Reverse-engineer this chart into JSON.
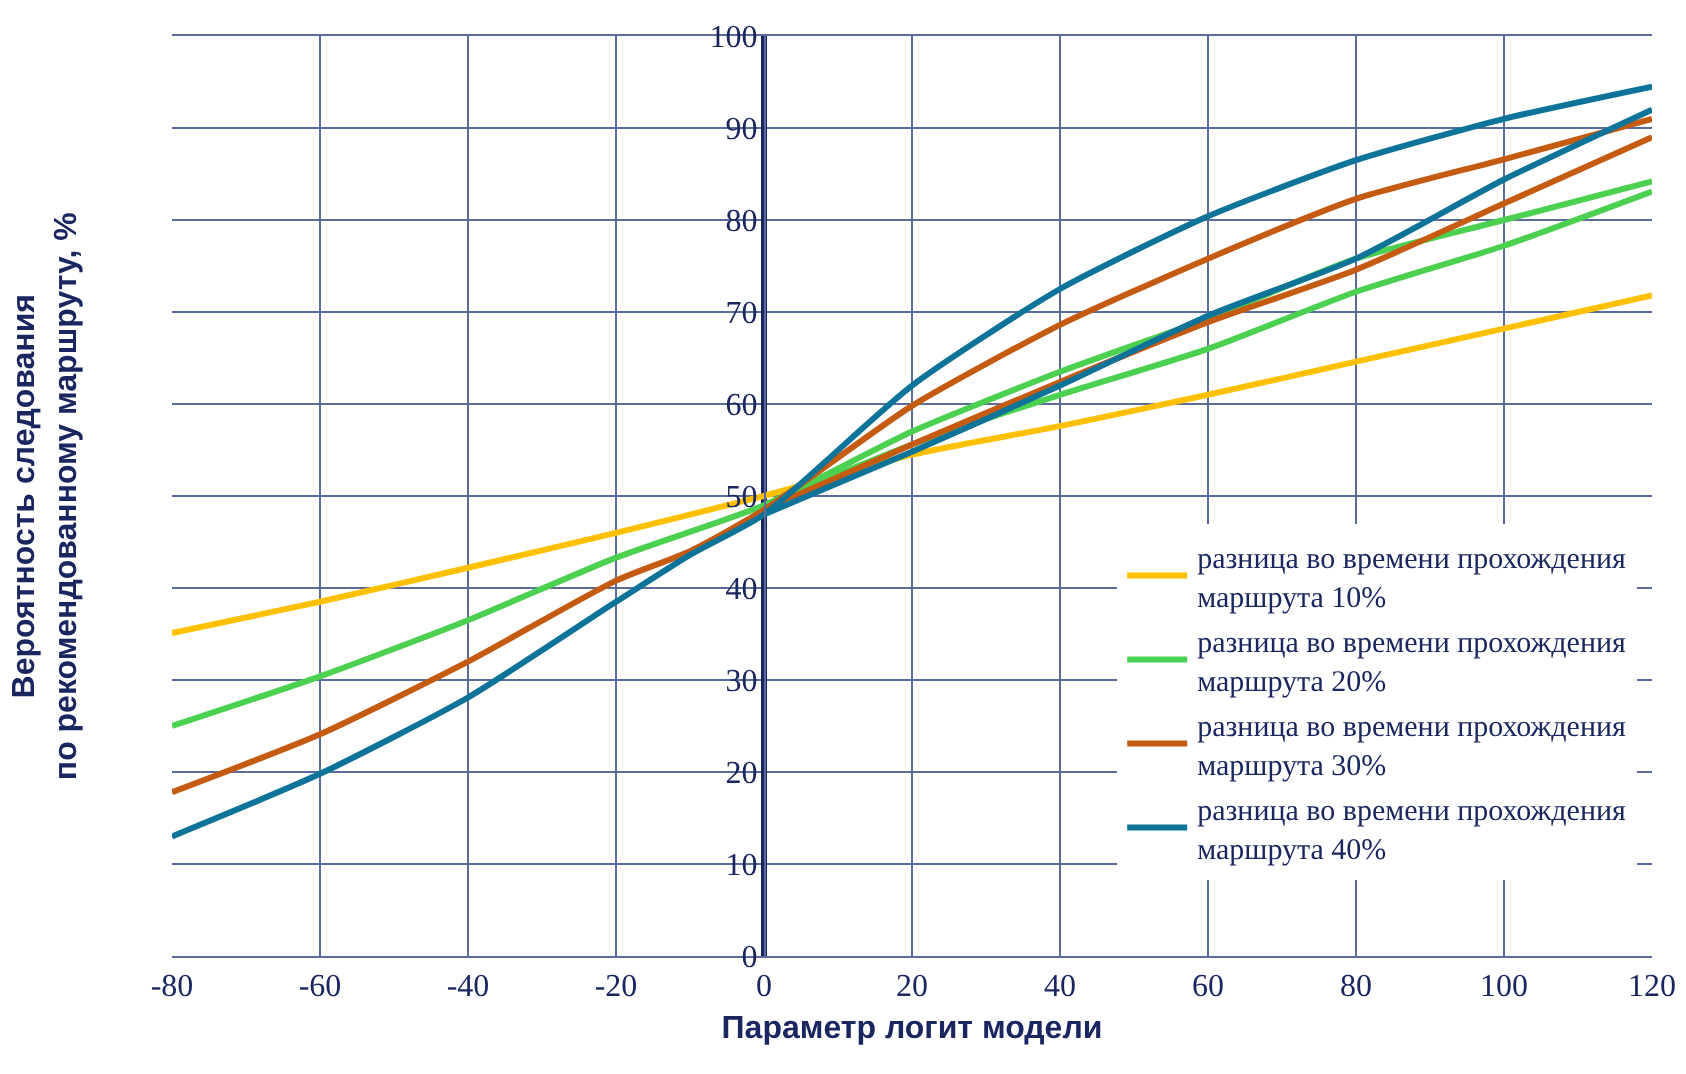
{
  "chart_data": {
    "type": "line",
    "xlabel": "Параметр логит модели",
    "ylabel": "Вероятность следования\nпо рекомендованному маршруту, %",
    "xlim": [
      -80,
      120
    ],
    "xticks": [
      -80,
      -60,
      -40,
      -20,
      0,
      20,
      40,
      60,
      80,
      100,
      120
    ],
    "ylim": [
      0,
      100
    ],
    "yticks": [
      0,
      10,
      20,
      30,
      40,
      50,
      60,
      70,
      80,
      90,
      100
    ],
    "grid": true,
    "legend": "right",
    "marker": "none",
    "line_style": "solid",
    "series": [
      {
        "name": "разница во времени прохождения\nмаршрута 10%",
        "color": "#ffc000",
        "x": [
          -80,
          -60,
          -40,
          -20,
          0,
          20,
          40,
          60,
          80,
          100,
          120
        ],
        "values": [
          35.1,
          38.5,
          42.2,
          46,
          50,
          54.5,
          57.6,
          61,
          64.6,
          68.2,
          71.8
        ]
      },
      {
        "name": "разница во времени прохождения\nмаршрута 20%",
        "color": "#4cd050",
        "x": [
          -80,
          -60,
          -40,
          -20,
          0,
          20,
          40,
          60,
          80,
          100,
          120
        ],
        "values": [
          25,
          30.4,
          36.5,
          43.3,
          49,
          57,
          63.5,
          69.3,
          75.8,
          80,
          84.2
        ]
      },
      {
        "color": "#4cd050",
        "x": [
          0,
          20,
          40,
          60,
          80,
          100,
          120
        ],
        "values": [
          49,
          55.6,
          61,
          66,
          72.2,
          77.2,
          83.1
        ]
      },
      {
        "name": "разница во времени прохождения\nмаршрута 30%",
        "color": "#c55a11",
        "x": [
          -80,
          -60,
          -40,
          -20,
          -10,
          0,
          20,
          40,
          60,
          80,
          100,
          120
        ],
        "values": [
          17.8,
          24.1,
          32,
          40.8,
          44,
          48.5,
          59.8,
          68.6,
          75.8,
          82.3,
          86.6,
          91
        ]
      },
      {
        "color": "#c55a11",
        "x": [
          0,
          20,
          40,
          60,
          80,
          100,
          120
        ],
        "values": [
          48.5,
          55.6,
          62.4,
          68.9,
          74.6,
          81.8,
          89
        ]
      },
      {
        "name": "разница во времени прохождения\nмаршрута 40%",
        "color": "#0e7399",
        "x": [
          -80,
          -60,
          -40,
          -20,
          -10,
          0,
          20,
          40,
          60,
          80,
          100,
          120
        ],
        "values": [
          13,
          19.8,
          28.1,
          38.5,
          43.6,
          48,
          62,
          72.5,
          80.4,
          86.5,
          91,
          94.5
        ]
      },
      {
        "color": "#0e7399",
        "x": [
          0,
          20,
          40,
          60,
          80,
          100,
          120
        ],
        "values": [
          48,
          54.8,
          62,
          69.6,
          75.8,
          84.4,
          92
        ]
      }
    ]
  }
}
